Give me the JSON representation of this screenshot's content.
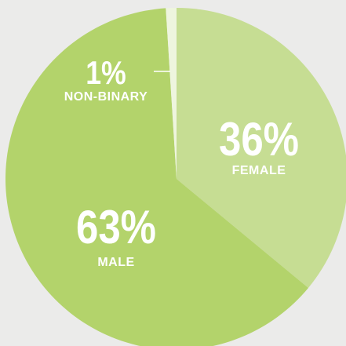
{
  "chart_data": {
    "type": "pie",
    "categories": [
      "FEMALE",
      "MALE",
      "NON-BINARY"
    ],
    "values": [
      36,
      63,
      1
    ],
    "value_labels": [
      "36%",
      "63%",
      "1%"
    ],
    "colors": [
      "#c6dd93",
      "#b3d36b",
      "#eef5de"
    ]
  }
}
